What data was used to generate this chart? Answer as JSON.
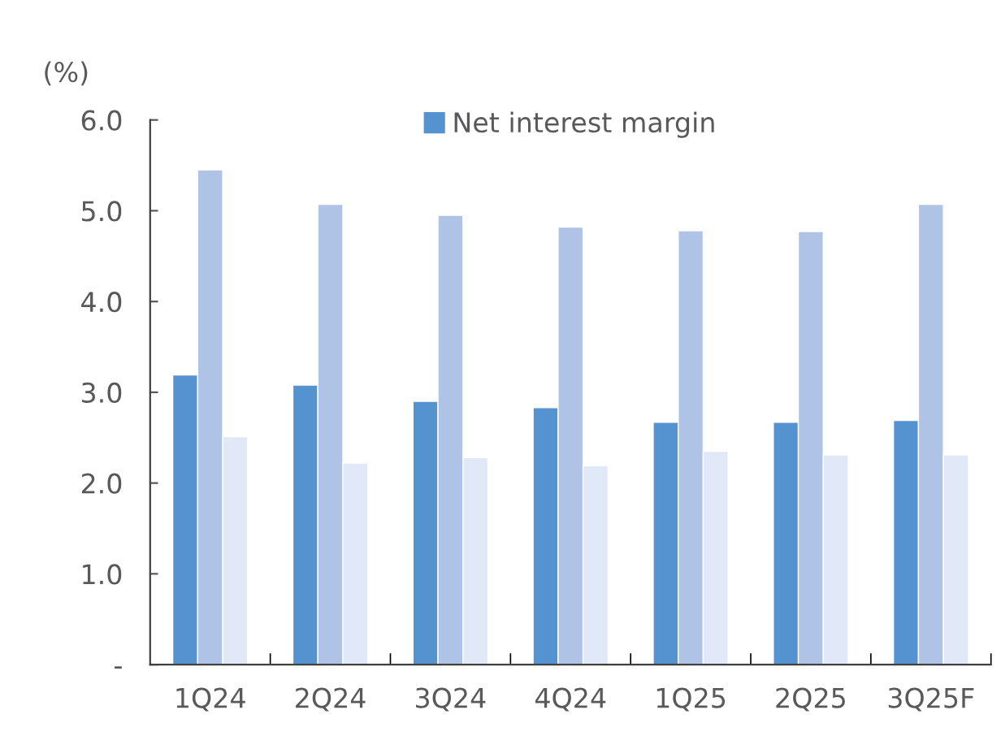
{
  "chart_data": {
    "type": "bar",
    "ylabel": "(%)",
    "categories": [
      "1Q24",
      "2Q24",
      "3Q24",
      "4Q24",
      "1Q25",
      "2Q25",
      "3Q25F"
    ],
    "series": [
      {
        "name": "Net interest margin",
        "color": "#5592d0",
        "values": [
          3.19,
          3.08,
          2.9,
          2.83,
          2.67,
          2.67,
          2.69
        ]
      },
      {
        "color": "#aec3e6",
        "values": [
          5.45,
          5.07,
          4.95,
          4.82,
          4.78,
          4.77,
          5.07
        ]
      },
      {
        "color": "#e1e8f7",
        "values": [
          2.51,
          2.22,
          2.28,
          2.19,
          2.35,
          2.31,
          2.31
        ]
      }
    ],
    "ylim": [
      0,
      6
    ],
    "yticks": [
      {
        "value": 0,
        "label": "-"
      },
      {
        "value": 1,
        "label": "1.0"
      },
      {
        "value": 2,
        "label": "2.0"
      },
      {
        "value": 3,
        "label": "3.0"
      },
      {
        "value": 4,
        "label": "4.0"
      },
      {
        "value": 5,
        "label": "5.0"
      },
      {
        "value": 6,
        "label": "6.0"
      }
    ],
    "grid": false,
    "legend": "top"
  }
}
